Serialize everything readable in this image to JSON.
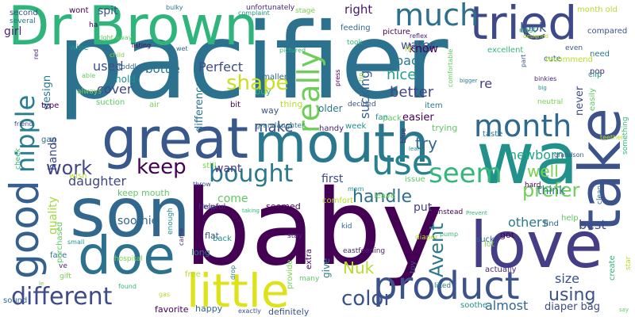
{
  "words": [
    {
      "text": "pacifier",
      "color": "#2c728e",
      "weight": 1.0
    },
    {
      "text": "baby",
      "color": "#440154",
      "weight": 0.95
    },
    {
      "text": "son",
      "color": "#31688e",
      "weight": 0.8
    },
    {
      "text": "wa",
      "color": "#21918c",
      "weight": 0.78
    },
    {
      "text": "love",
      "color": "#433e85",
      "weight": 0.72
    },
    {
      "text": "take",
      "color": "#3b528b",
      "weight": 0.7
    },
    {
      "text": "Dr Brown",
      "color": "#2fb47c",
      "weight": 0.62
    },
    {
      "text": "great",
      "color": "#38588c",
      "weight": 0.6
    },
    {
      "text": "mouth",
      "color": "#2a788e",
      "weight": 0.58
    },
    {
      "text": "little",
      "color": "#dde318",
      "weight": 0.56
    },
    {
      "text": "tried",
      "color": "#3e4989",
      "weight": 0.55
    },
    {
      "text": "doe",
      "color": "#2c728e",
      "weight": 0.55
    },
    {
      "text": "good",
      "color": "#355f8d",
      "weight": 0.5
    },
    {
      "text": "product",
      "color": "#3b528b",
      "weight": 0.46
    },
    {
      "text": "much",
      "color": "#2d708e",
      "weight": 0.42
    },
    {
      "text": "month",
      "color": "#31688e",
      "weight": 0.42
    },
    {
      "text": "use",
      "color": "#26828e",
      "weight": 0.4
    },
    {
      "text": "nipple",
      "color": "#287d8e",
      "weight": 0.38
    },
    {
      "text": "different",
      "color": "#3e4a89",
      "weight": 0.36
    },
    {
      "text": "really",
      "color": "#6ece58",
      "weight": 0.36
    },
    {
      "text": "bought",
      "color": "#2a788e",
      "weight": 0.34
    },
    {
      "text": "seem",
      "color": "#35b779",
      "weight": 0.33
    },
    {
      "text": "color",
      "color": "#3b528b",
      "weight": 0.32
    },
    {
      "text": "shape",
      "color": "#c8e020",
      "weight": 0.3
    },
    {
      "text": "keep",
      "color": "#440154",
      "weight": 0.28
    },
    {
      "text": "handle",
      "color": "#2d708e",
      "weight": 0.28
    },
    {
      "text": "work",
      "color": "#404688",
      "weight": 0.27
    },
    {
      "text": "prefer",
      "color": "#6ece58",
      "weight": 0.27
    },
    {
      "text": "Avent",
      "color": "#2a788e",
      "weight": 0.26
    },
    {
      "text": "using",
      "color": "#3b528b",
      "weight": 0.25
    },
    {
      "text": "Nuk",
      "color": "#b5de2b",
      "weight": 0.22
    },
    {
      "text": "well",
      "color": "#7ad151",
      "weight": 0.22
    },
    {
      "text": "make",
      "color": "#3e4989",
      "weight": 0.2
    },
    {
      "text": "try",
      "color": "#31688e",
      "weight": 0.2
    },
    {
      "text": "newborn",
      "color": "#20a486",
      "weight": 0.18
    },
    {
      "text": "size",
      "color": "#3b528b",
      "weight": 0.18
    },
    {
      "text": "almost",
      "color": "#31688e",
      "weight": 0.18
    },
    {
      "text": "better",
      "color": "#404688",
      "weight": 0.17
    },
    {
      "text": "nice",
      "color": "#1fa088",
      "weight": 0.17
    },
    {
      "text": "daughter",
      "color": "#404688",
      "weight": 0.16
    },
    {
      "text": "others",
      "color": "#2a788e",
      "weight": 0.16
    },
    {
      "text": "best",
      "color": "#3e4a89",
      "weight": 0.16
    },
    {
      "text": "cover",
      "color": "#404688",
      "weight": 0.15
    },
    {
      "text": "used",
      "color": "#3b528b",
      "weight": 0.15
    },
    {
      "text": "sucking",
      "color": "#355f8d",
      "weight": 0.15
    },
    {
      "text": "paci",
      "color": "#2a788e",
      "weight": 0.15
    },
    {
      "text": "right",
      "color": "#481668",
      "weight": 0.14
    },
    {
      "text": "bottle",
      "color": "#2c728e",
      "weight": 0.14
    },
    {
      "text": "Perfect",
      "color": "#3e4a89",
      "weight": 0.14
    },
    {
      "text": "look",
      "color": "#3b528b",
      "weight": 0.14
    },
    {
      "text": "water",
      "color": "#3b528b",
      "weight": 0.13
    },
    {
      "text": "know",
      "color": "#440154",
      "weight": 0.13
    },
    {
      "text": "re",
      "color": "#433e85",
      "weight": 0.13
    },
    {
      "text": "spit",
      "color": "#3b528b",
      "weight": 0.12
    },
    {
      "text": "girl",
      "color": "#482677",
      "weight": 0.12
    },
    {
      "text": "hands",
      "color": "#3e4a89",
      "weight": 0.12
    },
    {
      "text": "want",
      "color": "#453781",
      "weight": 0.12
    },
    {
      "text": "first",
      "color": "#3e4a89",
      "weight": 0.12
    },
    {
      "text": "come",
      "color": "#5ec962",
      "weight": 0.12
    },
    {
      "text": "put",
      "color": "#433e85",
      "weight": 0.12
    },
    {
      "text": "think",
      "color": "#2a788e",
      "weight": 0.12
    },
    {
      "text": "quality",
      "color": "#a0da39",
      "weight": 0.11
    },
    {
      "text": "soothie",
      "color": "#31688e",
      "weight": 0.11
    },
    {
      "text": "design",
      "color": "#2a788e",
      "weight": 0.1
    },
    {
      "text": "difference",
      "color": "#2c728e",
      "weight": 0.1
    },
    {
      "text": "easier",
      "color": "#440154",
      "weight": 0.1
    },
    {
      "text": "never",
      "color": "#3e4a89",
      "weight": 0.1
    },
    {
      "text": "diaper bag",
      "color": "#3e4a89",
      "weight": 0.1
    }
  ],
  "small_words": [
    "second",
    "several",
    "red",
    "wipe",
    "able",
    "always",
    "type",
    "gag",
    "cheek",
    "wish",
    "friend",
    "face",
    "ve",
    "small",
    "purchased",
    "hospital",
    "favorite",
    "happy",
    "found",
    "gas",
    "flat",
    "long",
    "came",
    "enough",
    "keep mouth",
    "still",
    "seemed",
    "born",
    "taking",
    "comfort",
    "definitely",
    "give",
    "stay",
    "hold",
    "suction",
    "air",
    "bit",
    "smaller",
    "buy",
    "thing",
    "way",
    "older",
    "handy",
    "week",
    "trying",
    "stage",
    "picture",
    "feeding",
    "took",
    "fit",
    "decided",
    "item",
    "reflex",
    "fan",
    "pack",
    "tip",
    "press",
    "cute",
    "excellent",
    "recommend",
    "even",
    "need",
    "pop",
    "clip",
    "easily",
    "neutral",
    "hard",
    "clean",
    "something",
    "teether",
    "grandson",
    "taste",
    "blue",
    "leaf",
    "issue",
    "leave",
    "instead",
    "suck",
    "pump",
    "diaper",
    "toy",
    "liked",
    "actually",
    "soothe",
    "many",
    "provide",
    "extra",
    "kid",
    "Prevent",
    "free",
    "throw",
    "drop",
    "helpful",
    "back",
    "help",
    "lot",
    "got",
    "find",
    "east",
    "month old",
    "compared",
    "bulky",
    "unfortunately",
    "complaint",
    "right away",
    "child",
    "listing",
    "wet",
    "pictured",
    "designed",
    "part",
    "bigger",
    "binkies",
    "big",
    "comfortable",
    "le",
    "wont",
    "sound",
    "create",
    "star",
    "exactly",
    "grandaughter",
    "eastfeeding",
    "mom",
    "say",
    "gift",
    "ha",
    "toddler"
  ]
}
